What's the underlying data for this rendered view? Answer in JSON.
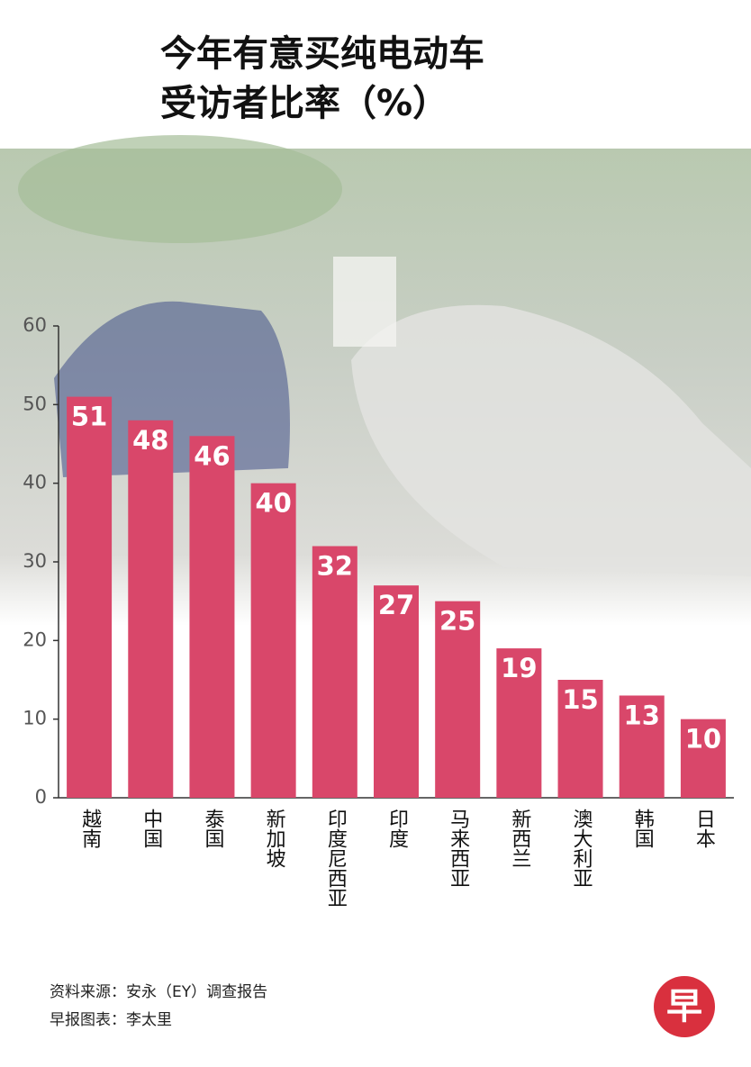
{
  "chart_data": {
    "type": "bar",
    "title": [
      "今年有意买纯电动车",
      "受访者比率（%）"
    ],
    "categories": [
      "越南",
      "中国",
      "泰国",
      "新加坡",
      "印度尼西亚",
      "印度",
      "马来西亚",
      "新西兰",
      "澳大利亚",
      "韩国",
      "日本"
    ],
    "values": [
      51,
      48,
      46,
      40,
      32,
      27,
      25,
      19,
      15,
      13,
      10
    ],
    "color": "#d9476a",
    "ylim": [
      0,
      60
    ],
    "yticks": [
      0,
      10,
      20,
      30,
      40,
      50,
      60
    ],
    "source": [
      "资料来源：安永（EY）调查报告",
      "早报图表：李太里"
    ],
    "logo": "早"
  }
}
